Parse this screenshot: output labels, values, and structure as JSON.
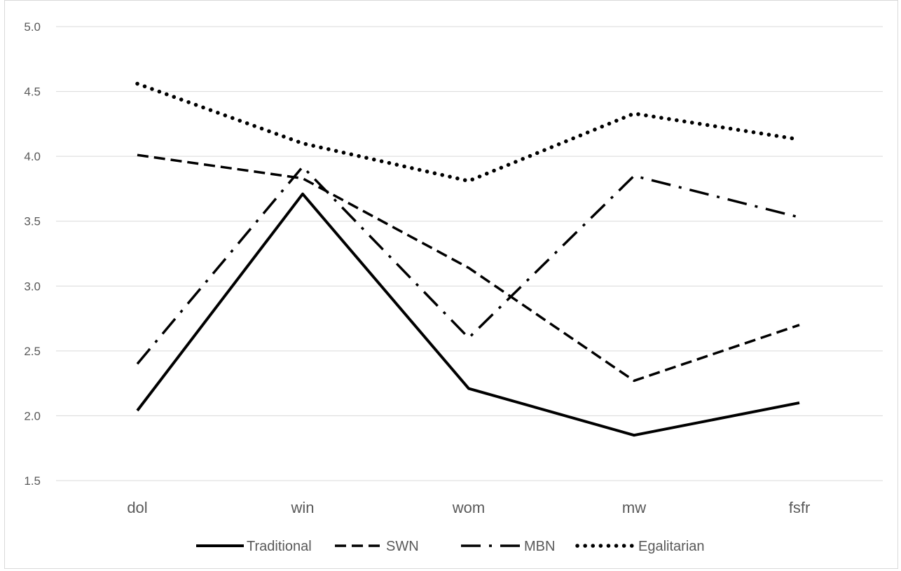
{
  "chart_data": {
    "type": "line",
    "categories": [
      "dol",
      "win",
      "wom",
      "mw",
      "fsfr"
    ],
    "ylim": [
      1.5,
      5.0
    ],
    "yticks": [
      "1.5",
      "2.0",
      "2.5",
      "3.0",
      "3.5",
      "4.0",
      "4.5",
      "5.0"
    ],
    "grid": true,
    "legend_position": "bottom",
    "series": [
      {
        "name": "Traditional",
        "values": [
          2.04,
          3.71,
          2.21,
          1.85,
          2.1
        ],
        "style": "solid",
        "color": "#000000"
      },
      {
        "name": "SWN",
        "values": [
          4.01,
          3.83,
          3.14,
          2.27,
          2.7
        ],
        "style": "dashed",
        "color": "#000000"
      },
      {
        "name": "MBN",
        "values": [
          2.4,
          3.92,
          2.6,
          3.85,
          3.53
        ],
        "style": "dash-dot",
        "color": "#000000"
      },
      {
        "name": "Egalitarian",
        "values": [
          4.56,
          4.1,
          3.81,
          4.33,
          4.13
        ],
        "style": "dotted",
        "color": "#000000"
      }
    ]
  }
}
